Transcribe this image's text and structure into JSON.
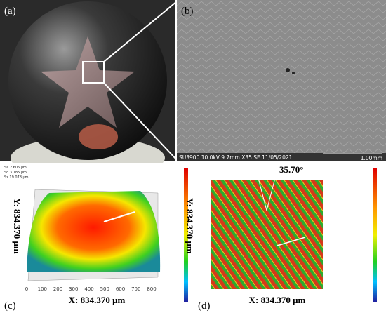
{
  "panels": [
    {
      "label": "(a)"
    },
    {
      "label": "(b)",
      "info_bar": "SU3900 10.0kV 9.7mm X35 SE 11/05/2021",
      "scale_bar": "1.00mm"
    },
    {
      "label": "(c)",
      "stats": [
        "Sa 2.606 μm",
        "Sq 3.185 μm",
        "Sz 19.078 μm"
      ],
      "y_axis": "Y: 834.370 μm",
      "x_axis": "X: 834.370 μm",
      "x_ticks": [
        "0",
        "100",
        "200",
        "300",
        "400",
        "500",
        "600",
        "700",
        "800"
      ]
    },
    {
      "label": "(d)",
      "angle": "35.70°",
      "y_axis": "Y: 834.370 μm",
      "x_axis": "X: 834.370 μm"
    }
  ]
}
